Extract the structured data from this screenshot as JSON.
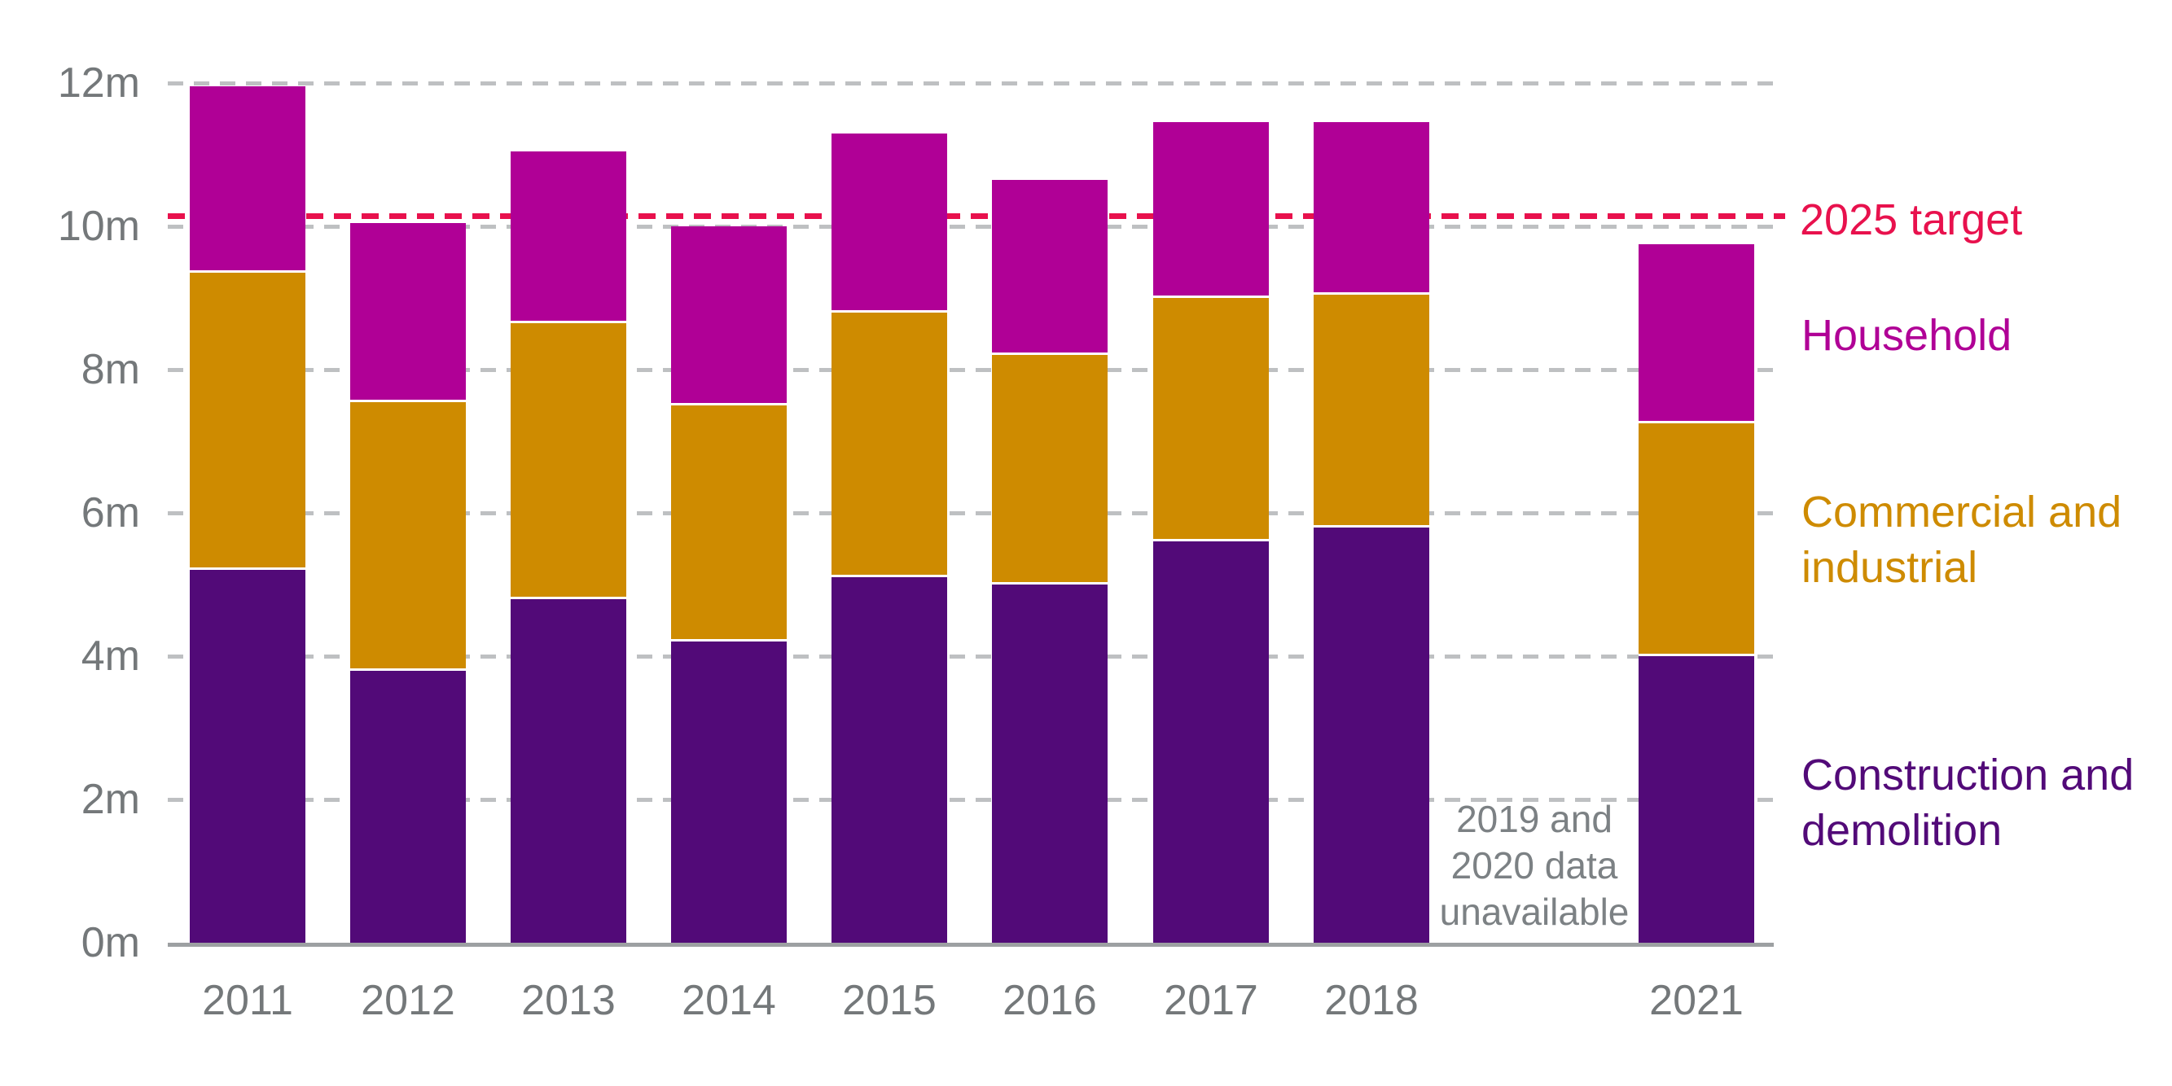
{
  "colors": {
    "household": "#b00096",
    "commercial_industrial": "#ce8b00",
    "construction_demolition": "#520a78",
    "target": "#e8114d",
    "axis_text": "#74787a",
    "note_text": "#7c8184",
    "gridline": "#bec0c2",
    "axis_line": "#9da0a2"
  },
  "y_axis": {
    "ticks": [
      {
        "label": "0m",
        "value": 0
      },
      {
        "label": "2m",
        "value": 2
      },
      {
        "label": "4m",
        "value": 4
      },
      {
        "label": "6m",
        "value": 6
      },
      {
        "label": "8m",
        "value": 8
      },
      {
        "label": "10m",
        "value": 10
      },
      {
        "label": "12m",
        "value": 12
      }
    ]
  },
  "chart_data": {
    "type": "bar",
    "stacked": true,
    "categories": [
      "2011",
      "2012",
      "2013",
      "2014",
      "2015",
      "2016",
      "2017",
      "2018",
      "2021"
    ],
    "series": [
      {
        "name": "Construction and demolition",
        "color": "#520a78",
        "values": [
          5.2,
          3.8,
          4.8,
          4.2,
          5.1,
          5.0,
          5.6,
          5.8,
          4.0
        ]
      },
      {
        "name": "Commercial and industrial",
        "color": "#ce8b00",
        "values": [
          4.15,
          3.75,
          3.85,
          3.3,
          3.7,
          3.2,
          3.4,
          3.25,
          3.25
        ]
      },
      {
        "name": "Household",
        "color": "#b00096",
        "values": [
          2.6,
          2.5,
          2.4,
          2.5,
          2.5,
          2.45,
          2.45,
          2.4,
          2.5
        ]
      }
    ],
    "totals": [
      11.95,
      10.05,
      11.05,
      10.0,
      11.3,
      10.65,
      11.45,
      11.45,
      9.75
    ],
    "target_line": {
      "label": "2025 target",
      "value": 10.15,
      "color": "#e8114d"
    },
    "missing_years": [
      "2019",
      "2020"
    ],
    "annotation": {
      "lines": [
        "2019 and",
        "2020 data",
        "unavailable"
      ]
    },
    "title": "",
    "xlabel": "",
    "ylabel": "",
    "ylim": [
      0,
      12
    ],
    "grid": true,
    "legend_position": "right"
  }
}
